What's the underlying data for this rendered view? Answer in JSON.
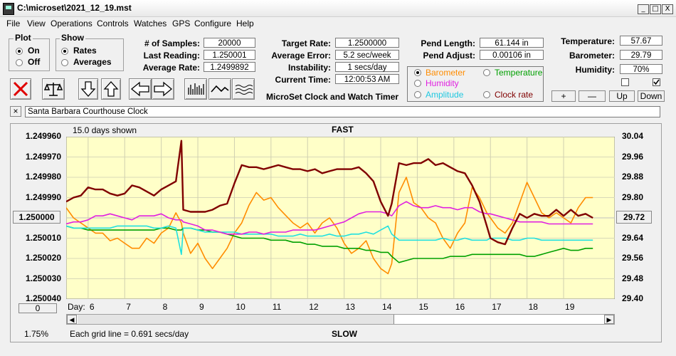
{
  "window": {
    "title": "C:\\microset\\2021_12_19.mst",
    "min": "_",
    "max": "□",
    "close": "X"
  },
  "menu": [
    "File",
    "View",
    "Operations",
    "Controls",
    "Watches",
    "GPS",
    "Configure",
    "Help"
  ],
  "plot_group": {
    "title": "Plot",
    "on": "On",
    "off": "Off",
    "selected": "On"
  },
  "show_group": {
    "title": "Show",
    "rates": "Rates",
    "averages": "Averages",
    "selected": "Rates"
  },
  "stats": {
    "samples_label": "# of Samples:",
    "samples": "20000",
    "last_label": "Last Reading:",
    "last": "1.250001",
    "avg_label": "Average Rate:",
    "avg": "1.2499892",
    "target_label": "Target Rate:",
    "target": "1.2500000",
    "error_label": "Average Error:",
    "error": "5.2 sec/week",
    "instab_label": "Instability:",
    "instab": "1 secs/day",
    "time_label": "Current Time:",
    "time": "12:00:53 AM",
    "pendlen_label": "Pend Length:",
    "pendlen": "61.144 in",
    "pendadj_label": "Pend Adjust:",
    "pendadj": "0.00106 in",
    "temp_label": "Temperature:",
    "temp": "57.67",
    "baro_label": "Barometer:",
    "baro": "29.79",
    "hum_label": "Humidity:",
    "hum": "70%"
  },
  "app_caption": "MicroSet Clock and Watch Timer",
  "sensor_select": {
    "barometer": "Barometer",
    "temperature": "Temperature",
    "humidity": "Humidity",
    "amplitude": "Amplitude",
    "clockrate": "Clock rate",
    "selected": "Barometer"
  },
  "adjust_buttons": {
    "plus": "+",
    "minus": "—",
    "up": "Up",
    "down": "Down"
  },
  "checkboxes": {
    "left_checked": false,
    "right_checked": true
  },
  "clock_name": {
    "close": "×",
    "value": "Santa Barbara Courthouse Clock"
  },
  "plot": {
    "days_shown": "15.0 days shown",
    "fast": "FAST",
    "slow": "SLOW",
    "center_left": "1.250000",
    "center_right": "29.72",
    "offset_btn": "0",
    "zoom": "1.75%",
    "grid_note": "Each grid line = 0.691 secs/day",
    "day_prefix": "Day:",
    "left_ticks": [
      "1.249960",
      "1.249970",
      "1.249980",
      "1.249990",
      "1.250000",
      "1.250010",
      "1.250020",
      "1.250030",
      "1.250040"
    ],
    "right_ticks": [
      "30.04",
      "29.96",
      "29.88",
      "29.80",
      "29.72",
      "29.64",
      "29.56",
      "29.48",
      "29.40"
    ],
    "days": [
      "6",
      "7",
      "8",
      "9",
      "10",
      "11",
      "12",
      "13",
      "14",
      "15",
      "16",
      "17",
      "18",
      "19"
    ]
  },
  "colors": {
    "plot_bg": "#ffffc8",
    "rate": "#800000",
    "barometer": "#ff8c00",
    "humidity": "#e020e0",
    "temperature": "#00a000",
    "amplitude": "#20e0e0",
    "clockrate": "#800000"
  },
  "chart_data": {
    "type": "line",
    "title": "FAST",
    "xlabel": "Day:",
    "ylabel_left": "",
    "ylabel_right": "",
    "x": [
      5.4,
      5.6,
      5.8,
      6.0,
      6.2,
      6.4,
      6.6,
      6.8,
      7.0,
      7.2,
      7.4,
      7.6,
      7.8,
      8.0,
      8.2,
      8.4,
      8.55,
      8.6,
      8.8,
      9.0,
      9.2,
      9.4,
      9.6,
      9.8,
      10.0,
      10.2,
      10.4,
      10.6,
      10.8,
      11.0,
      11.2,
      11.4,
      11.6,
      11.8,
      12.0,
      12.2,
      12.4,
      12.6,
      12.8,
      13.0,
      13.2,
      13.4,
      13.6,
      13.8,
      14.0,
      14.2,
      14.3,
      14.5,
      14.7,
      14.9,
      15.1,
      15.3,
      15.5,
      15.7,
      15.9,
      16.1,
      16.3,
      16.5,
      16.7,
      16.9,
      17.0,
      17.2,
      17.4,
      17.6,
      17.8,
      18.0,
      18.2,
      18.4,
      18.6,
      18.8,
      19.0,
      19.2,
      19.4,
      19.6,
      19.8
    ],
    "xlim": [
      5.4,
      20.4
    ],
    "series": [
      {
        "axis": "left",
        "color": "#800000",
        "values": [
          1.249992,
          1.24999,
          1.249989,
          1.249985,
          1.249986,
          1.249986,
          1.249988,
          1.249989,
          1.249988,
          1.249984,
          1.249985,
          1.249987,
          1.249989,
          1.249986,
          1.249984,
          1.249982,
          1.249962,
          1.249996,
          1.249997,
          1.249997,
          1.249997,
          1.249996,
          1.249994,
          1.249993,
          1.249983,
          1.249974,
          1.249975,
          1.249975,
          1.249976,
          1.249975,
          1.249974,
          1.249975,
          1.249976,
          1.249976,
          1.249977,
          1.249976,
          1.249978,
          1.249977,
          1.249976,
          1.249976,
          1.249976,
          1.249975,
          1.249978,
          1.249982,
          1.249992,
          1.249999,
          1.249993,
          1.249973,
          1.249974,
          1.249973,
          1.249973,
          1.249971,
          1.249974,
          1.249973,
          1.249975,
          1.249977,
          1.249978,
          1.249984,
          1.249992,
          1.250004,
          1.25001,
          1.250012,
          1.250013,
          1.250005,
          1.249998,
          1.25,
          1.249998,
          1.249999,
          1.249999,
          1.249996,
          1.249999,
          1.249996,
          1.249999,
          1.249998,
          1.25
        ]
      },
      {
        "axis": "right",
        "color": "#ff8c00",
        "values": [
          29.76,
          29.72,
          29.7,
          29.68,
          29.66,
          29.66,
          29.63,
          29.64,
          29.62,
          29.6,
          29.6,
          29.64,
          29.62,
          29.66,
          29.68,
          29.74,
          29.7,
          29.66,
          29.58,
          29.62,
          29.56,
          29.52,
          29.56,
          29.6,
          29.66,
          29.7,
          29.77,
          29.82,
          29.79,
          29.8,
          29.76,
          29.73,
          29.7,
          29.68,
          29.7,
          29.66,
          29.7,
          29.72,
          29.68,
          29.62,
          29.58,
          29.6,
          29.63,
          29.56,
          29.52,
          29.5,
          29.54,
          29.82,
          29.88,
          29.78,
          29.76,
          29.72,
          29.7,
          29.64,
          29.6,
          29.66,
          29.7,
          29.84,
          29.8,
          29.74,
          29.72,
          29.68,
          29.66,
          29.7,
          29.78,
          29.86,
          29.8,
          29.74,
          29.72,
          29.74,
          29.72,
          29.7,
          29.76,
          29.8,
          29.8
        ]
      },
      {
        "axis": "left",
        "color": "#e020e0",
        "values": [
          1.250003,
          1.250002,
          1.250002,
          1.250001,
          1.249999,
          1.249999,
          1.249998,
          1.249999,
          1.25,
          1.250001,
          1.249999,
          1.249999,
          1.249999,
          1.249998,
          1.25,
          1.250001,
          1.250001,
          1.250002,
          1.250003,
          1.250004,
          1.250006,
          1.250006,
          1.250007,
          1.250008,
          1.250008,
          1.250008,
          1.250007,
          1.250007,
          1.250008,
          1.250007,
          1.250007,
          1.250007,
          1.250006,
          1.250006,
          1.250006,
          1.250006,
          1.250005,
          1.250004,
          1.250003,
          1.250002,
          1.25,
          1.249998,
          1.249997,
          1.249997,
          1.249997,
          1.249998,
          1.249999,
          1.249994,
          1.249992,
          1.249994,
          1.249995,
          1.249995,
          1.249994,
          1.249995,
          1.249995,
          1.249996,
          1.249995,
          1.249995,
          1.249997,
          1.249998,
          1.249998,
          1.249999,
          1.25,
          1.250001,
          1.250002,
          1.250002,
          1.250002,
          1.250002,
          1.250003,
          1.250003,
          1.250003,
          1.250003,
          1.250003,
          1.250003,
          1.250003
        ]
      },
      {
        "axis": "left",
        "color": "#00a000",
        "values": [
          1.250004,
          1.250005,
          1.250005,
          1.250006,
          1.250006,
          1.250006,
          1.250006,
          1.250006,
          1.250006,
          1.250006,
          1.250006,
          1.250006,
          1.250006,
          1.250005,
          1.250005,
          1.250006,
          1.250006,
          1.250005,
          1.250005,
          1.250006,
          1.250006,
          1.250007,
          1.250007,
          1.250008,
          1.250009,
          1.25001,
          1.25001,
          1.25001,
          1.25001,
          1.250011,
          1.250011,
          1.250011,
          1.250012,
          1.250012,
          1.250013,
          1.250013,
          1.250014,
          1.250014,
          1.250014,
          1.250015,
          1.250015,
          1.250015,
          1.250016,
          1.250016,
          1.250017,
          1.250017,
          1.250019,
          1.250022,
          1.250021,
          1.25002,
          1.25002,
          1.25002,
          1.25002,
          1.25002,
          1.250019,
          1.250019,
          1.250019,
          1.250018,
          1.250018,
          1.250018,
          1.250018,
          1.250018,
          1.250018,
          1.250018,
          1.250018,
          1.250019,
          1.250019,
          1.250018,
          1.250017,
          1.250016,
          1.250015,
          1.250016,
          1.250016,
          1.250015,
          1.250015
        ]
      },
      {
        "axis": "left",
        "color": "#20e0e0",
        "values": [
          1.250004,
          1.250005,
          1.250005,
          1.250005,
          1.250005,
          1.250005,
          1.250005,
          1.250004,
          1.250004,
          1.250004,
          1.250004,
          1.250004,
          1.250005,
          1.250005,
          1.250004,
          1.250005,
          1.250018,
          1.250005,
          1.250005,
          1.250006,
          1.250007,
          1.250007,
          1.250007,
          1.250007,
          1.250007,
          1.250008,
          1.250008,
          1.250008,
          1.250008,
          1.250008,
          1.250009,
          1.250009,
          1.250009,
          1.250008,
          1.250009,
          1.250009,
          1.250009,
          1.250008,
          1.250009,
          1.250009,
          1.250008,
          1.250008,
          1.250007,
          1.250008,
          1.250006,
          1.250004,
          1.250008,
          1.250011,
          1.250011,
          1.250011,
          1.250011,
          1.250011,
          1.250011,
          1.25001,
          1.250011,
          1.250011,
          1.25001,
          1.250011,
          1.250011,
          1.250011,
          1.25001,
          1.25001,
          1.25001,
          1.250011,
          1.250011,
          1.25001,
          1.25001,
          1.250011,
          1.250011,
          1.250011,
          1.250011,
          1.250011,
          1.250011,
          1.250011,
          1.250011
        ]
      }
    ],
    "ylim_left": [
      1.24996,
      1.25004
    ],
    "ylim_right": [
      29.4,
      30.04
    ],
    "grid": true
  }
}
